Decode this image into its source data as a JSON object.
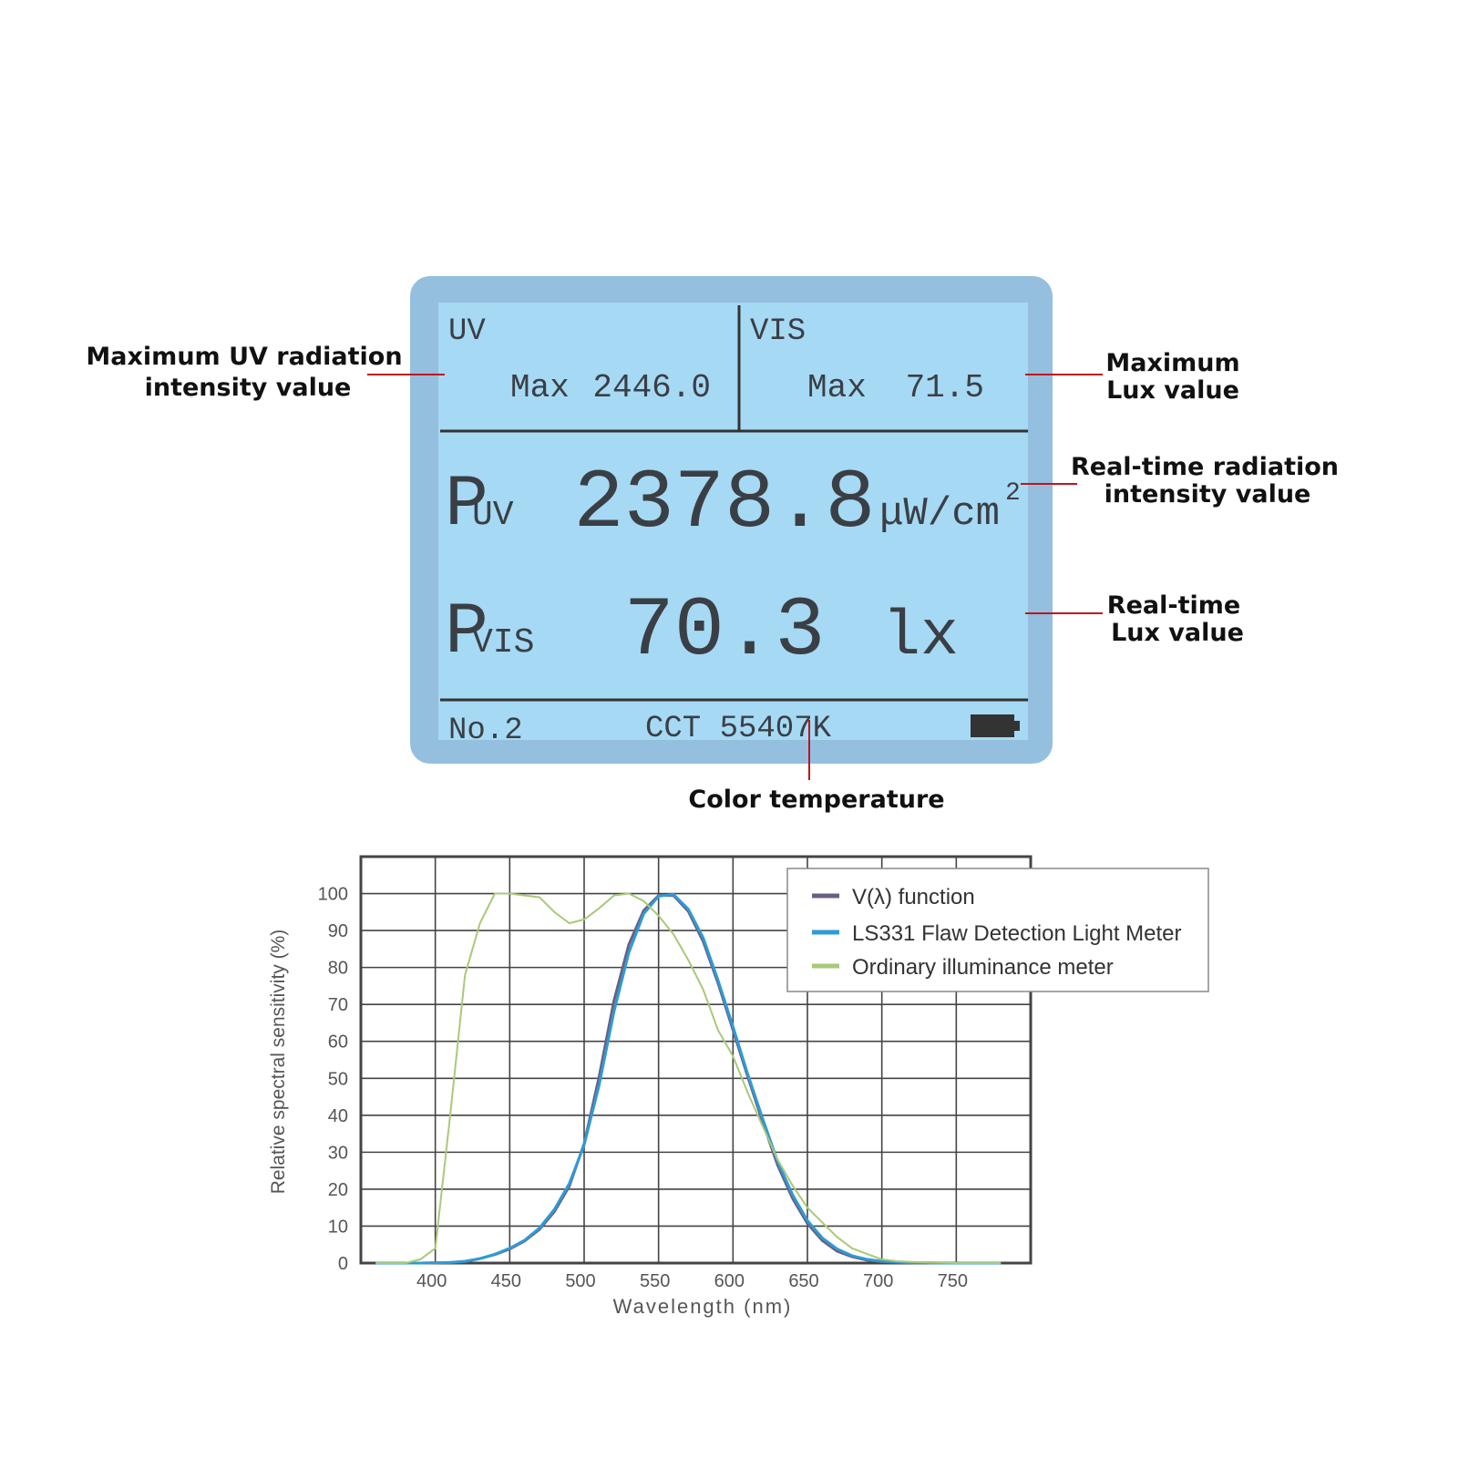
{
  "screen": {
    "uv_label": "UV",
    "uv_max_label": "Max",
    "uv_max": "2446.0",
    "vis_label": "VIS",
    "vis_max_label": "Max",
    "vis_max": "71.5",
    "puv_symbol": "P",
    "puv_sub": "UV",
    "puv_value": "2378.8",
    "puv_unit": "μW/cm",
    "puv_unit_sup": "2",
    "pvis_symbol": "P",
    "pvis_sub": "VIS",
    "pvis_value": "70.3",
    "pvis_unit": "lx",
    "record": "No.2",
    "cct": "CCT 55407K"
  },
  "annotations": {
    "max_uv": [
      "Maximum UV radiation",
      "intensity value"
    ],
    "max_lux": [
      "Maximum",
      "Lux value"
    ],
    "rt_radiation": [
      "Real-time radiation",
      "intensity value"
    ],
    "rt_lux": [
      "Real-time",
      "Lux value"
    ],
    "color_temp": [
      "Color temperature"
    ]
  },
  "chart_data": {
    "type": "line",
    "x_label": "Wavelength (nm)",
    "y_label": "Relative spectral sensitivity (%)",
    "xlim": [
      350,
      800
    ],
    "ylim": [
      0,
      110
    ],
    "xticks": [
      400,
      450,
      500,
      550,
      600,
      650,
      700,
      750
    ],
    "yticks": [
      0,
      10,
      20,
      30,
      40,
      50,
      60,
      70,
      80,
      90,
      100
    ],
    "grid": true,
    "legend": "upper right",
    "x": [
      360,
      370,
      380,
      390,
      400,
      410,
      420,
      430,
      440,
      450,
      460,
      470,
      480,
      490,
      500,
      510,
      520,
      530,
      540,
      550,
      560,
      570,
      580,
      590,
      600,
      610,
      620,
      630,
      640,
      650,
      660,
      670,
      680,
      690,
      700,
      710,
      720,
      730,
      740,
      750,
      760,
      770,
      780
    ],
    "series": [
      {
        "name": "V(λ) function",
        "color": "#6b5f80",
        "values": [
          0,
          0,
          0,
          0,
          0.04,
          0.12,
          0.4,
          1.2,
          2.3,
          3.8,
          6,
          9.1,
          13.9,
          20.8,
          32.3,
          50.3,
          71,
          86.2,
          95.4,
          99.5,
          99.5,
          95.2,
          87,
          75.7,
          63.1,
          50.3,
          38.1,
          26.5,
          17.5,
          10.7,
          6.1,
          3.2,
          1.7,
          0.8,
          0.4,
          0.2,
          0.1,
          0.05,
          0.02,
          0.01,
          0,
          0,
          0
        ]
      },
      {
        "name": "LS331 Flaw Detection Light Meter",
        "color": "#2e9bd6",
        "values": [
          0,
          0,
          0,
          0,
          0.1,
          0.2,
          0.5,
          1.2,
          2.4,
          4,
          6.2,
          9.5,
          14.5,
          21.5,
          32,
          48,
          68,
          84,
          94.5,
          99.3,
          99.8,
          95.8,
          88,
          76.5,
          64,
          51,
          39,
          27.5,
          18.5,
          11.5,
          6.8,
          3.8,
          2,
          1,
          0.5,
          0.3,
          0.1,
          0.05,
          0,
          0,
          0,
          0,
          0
        ]
      },
      {
        "name": "Ordinary illuminance meter",
        "color": "#a9c97a",
        "values": [
          0,
          0,
          0,
          1,
          4,
          40,
          78,
          92,
          100,
          100,
          99.5,
          99,
          95,
          92,
          93,
          96,
          99.5,
          100,
          98,
          94,
          89,
          82,
          74,
          63,
          56,
          46,
          37,
          28,
          21,
          15,
          11,
          7,
          4,
          2.5,
          1,
          0.5,
          0.3,
          0.2,
          0.1,
          0,
          0,
          0,
          0
        ]
      }
    ]
  }
}
